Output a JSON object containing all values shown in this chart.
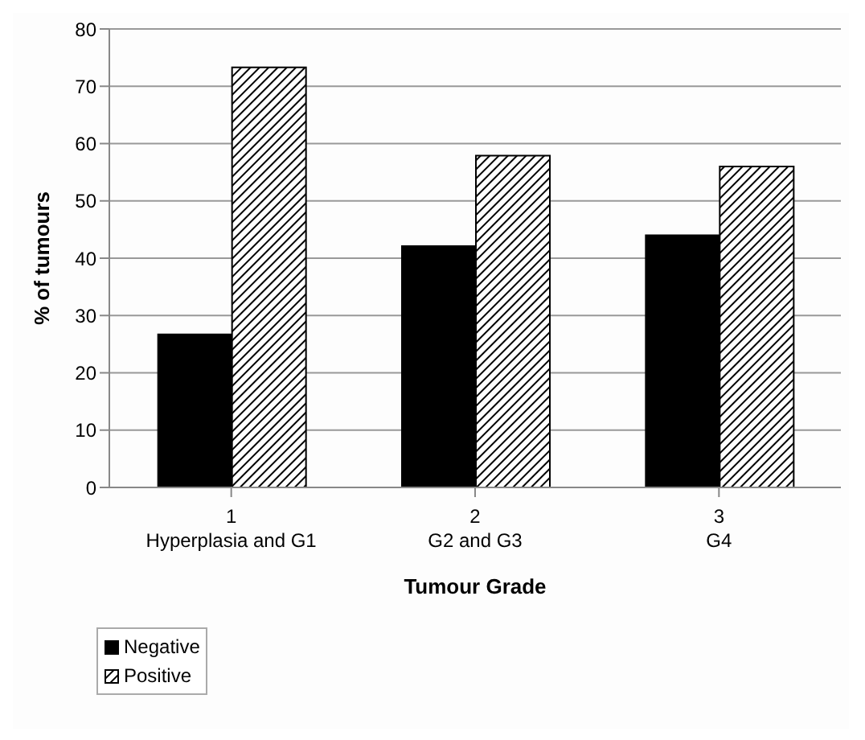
{
  "chart_data": {
    "type": "bar",
    "xlabel": "Tumour Grade",
    "ylabel": "% of tumours",
    "categories": [
      "1\nHyperplasia and G1",
      "2\nG2 and G3",
      "3\nG4"
    ],
    "series": [
      {
        "name": "Negative",
        "color": "#000000",
        "values": [
          26.7,
          42.1,
          44.0
        ]
      },
      {
        "name": "Positive",
        "color": "#000000",
        "values": [
          73.3,
          57.9,
          56.0
        ]
      }
    ],
    "ylim": [
      0,
      80
    ],
    "yticks": [
      0,
      10,
      20,
      30,
      40,
      50,
      60,
      70,
      80
    ],
    "grid": "y",
    "legend": "bottom left"
  }
}
